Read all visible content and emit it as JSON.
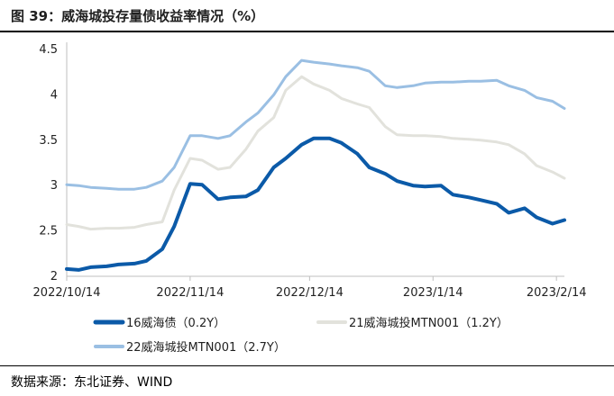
{
  "header": {
    "title": "图 39：威海城投存量债收益率情况（%）"
  },
  "footer": {
    "source": "数据来源：东北证券、WIND"
  },
  "chart_data": {
    "type": "line",
    "title": "",
    "xlabel": "",
    "ylabel": "",
    "ylim": [
      2,
      4.5
    ],
    "y_ticks": [
      "2",
      "2.5",
      "3",
      "3.5",
      "4",
      "4.5"
    ],
    "x_ticks": [
      "2022/10/14",
      "2022/11/14",
      "2022/12/14",
      "2023/1/14",
      "2023/2/14"
    ],
    "grid": false,
    "legend": "bottom",
    "x": [
      "2022/10/14",
      "2022/10/17",
      "2022/10/20",
      "2022/10/24",
      "2022/10/27",
      "2022/10/31",
      "2022/11/03",
      "2022/11/07",
      "2022/11/10",
      "2022/11/14",
      "2022/11/17",
      "2022/11/21",
      "2022/11/24",
      "2022/11/28",
      "2022/12/01",
      "2022/12/05",
      "2022/12/08",
      "2022/12/12",
      "2022/12/15",
      "2022/12/19",
      "2022/12/22",
      "2022/12/26",
      "2022/12/29",
      "2023/01/02",
      "2023/01/05",
      "2023/01/09",
      "2023/01/12",
      "2023/01/16",
      "2023/01/19",
      "2023/01/23",
      "2023/01/26",
      "2023/01/30",
      "2023/02/02",
      "2023/02/06",
      "2023/02/09",
      "2023/02/13",
      "2023/02/16"
    ],
    "series": [
      {
        "name": "16威海债（0.2Y）",
        "color": "#0b5aa8",
        "width": 4,
        "values": [
          2.08,
          2.07,
          2.1,
          2.11,
          2.13,
          2.14,
          2.17,
          2.3,
          2.55,
          3.02,
          3.01,
          2.85,
          2.87,
          2.88,
          2.95,
          3.2,
          3.3,
          3.45,
          3.52,
          3.52,
          3.47,
          3.35,
          3.2,
          3.13,
          3.05,
          3.0,
          2.99,
          3.0,
          2.9,
          2.87,
          2.84,
          2.8,
          2.7,
          2.75,
          2.65,
          2.58,
          2.62
        ]
      },
      {
        "name": "21威海城投MTN001（1.2Y）",
        "color": "#e2e2dc",
        "width": 3,
        "values": [
          2.57,
          2.55,
          2.52,
          2.53,
          2.53,
          2.54,
          2.57,
          2.6,
          2.95,
          3.3,
          3.28,
          3.18,
          3.2,
          3.4,
          3.6,
          3.75,
          4.05,
          4.2,
          4.12,
          4.05,
          3.96,
          3.9,
          3.86,
          3.65,
          3.56,
          3.55,
          3.55,
          3.54,
          3.52,
          3.51,
          3.5,
          3.48,
          3.45,
          3.35,
          3.22,
          3.15,
          3.08
        ]
      },
      {
        "name": "22威海城投MTN001（2.7Y）",
        "color": "#9abfe3",
        "width": 3,
        "values": [
          3.01,
          3.0,
          2.98,
          2.97,
          2.96,
          2.96,
          2.98,
          3.05,
          3.2,
          3.55,
          3.55,
          3.52,
          3.55,
          3.7,
          3.8,
          4.0,
          4.2,
          4.38,
          4.36,
          4.34,
          4.32,
          4.3,
          4.26,
          4.1,
          4.08,
          4.1,
          4.13,
          4.14,
          4.14,
          4.15,
          4.15,
          4.16,
          4.1,
          4.05,
          3.97,
          3.93,
          3.85
        ]
      }
    ]
  }
}
